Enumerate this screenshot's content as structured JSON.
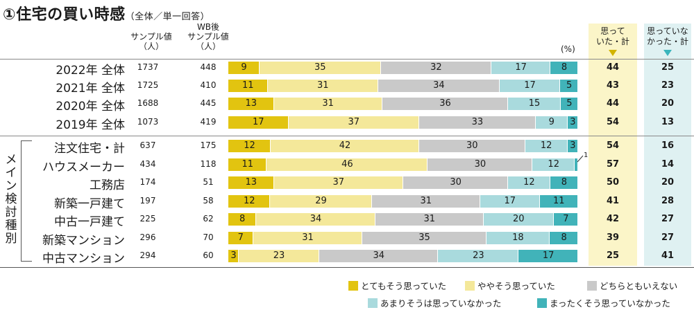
{
  "title": {
    "main": "①住宅の買い時感",
    "sub": "（全体／単一回答）"
  },
  "columns": {
    "sample": [
      "サンプル値",
      "（人）"
    ],
    "wb_sample": [
      "WB後",
      "サンプル値",
      "（人）"
    ],
    "percent_unit": "(%)",
    "sum_thought": [
      "思って",
      "いた・計"
    ],
    "sum_not": [
      "思っていな",
      "かった・計"
    ]
  },
  "group_label": "メイン検討種別",
  "legend": [
    {
      "label": "とてもそう思っていた",
      "color": "#e2c410"
    },
    {
      "label": "ややそう思っていた",
      "color": "#f4e89a"
    },
    {
      "label": "どちらともいえない",
      "color": "#c9c9c9"
    },
    {
      "label": "あまりそうは思っていなかった",
      "color": "#a9dadd"
    },
    {
      "label": "まったくそう思っていなかった",
      "color": "#41b3b9"
    }
  ],
  "chart_data": {
    "type": "bar",
    "orientation": "horizontal",
    "stacked": true,
    "unit": "%",
    "categories": [
      "2022年 全体",
      "2021年 全体",
      "2020年 全体",
      "2019年 全体",
      "注文住宅・計",
      "ハウスメーカー",
      "工務店",
      "新築一戸建て",
      "中古一戸建て",
      "新築マンション",
      "中古マンション"
    ],
    "series": [
      {
        "name": "とてもそう思っていた",
        "values": [
          9,
          11,
          13,
          17,
          12,
          11,
          13,
          12,
          8,
          7,
          3
        ]
      },
      {
        "name": "ややそう思っていた",
        "values": [
          35,
          31,
          31,
          37,
          42,
          46,
          37,
          29,
          34,
          31,
          23
        ]
      },
      {
        "name": "どちらともいえない",
        "values": [
          32,
          34,
          36,
          33,
          30,
          30,
          30,
          31,
          31,
          35,
          34
        ]
      },
      {
        "name": "あまりそうは思っていなかった",
        "values": [
          17,
          17,
          15,
          9,
          12,
          12,
          12,
          17,
          20,
          18,
          23
        ]
      },
      {
        "name": "まったくそう思っていなかった",
        "values": [
          8,
          5,
          5,
          3,
          3,
          1,
          8,
          11,
          7,
          8,
          17
        ]
      }
    ],
    "sample_n": [
      1737,
      1725,
      1688,
      1073,
      637,
      434,
      174,
      197,
      225,
      296,
      294
    ],
    "wb_sample_n": [
      448,
      410,
      445,
      419,
      175,
      118,
      51,
      58,
      62,
      70,
      60
    ],
    "total_thought": [
      44,
      43,
      44,
      54,
      54,
      57,
      50,
      41,
      42,
      39,
      25
    ],
    "total_not_thought": [
      25,
      23,
      20,
      13,
      16,
      14,
      20,
      28,
      27,
      27,
      41
    ],
    "outside_labels": [
      {
        "row": 5,
        "series": 4,
        "text": "1"
      }
    ]
  }
}
